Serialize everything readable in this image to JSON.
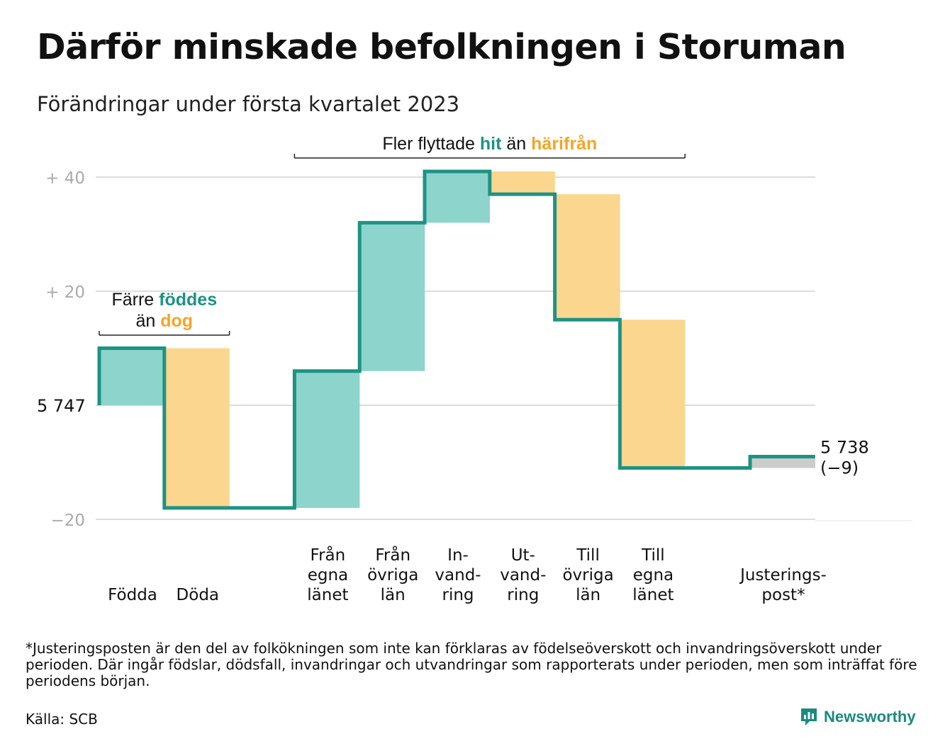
{
  "title": "Därför minskade befolkningen i Storuman",
  "subtitle": "Förändringar under första kvartalet 2023",
  "footnote": "*Justeringsposten är den del av folkökningen som inte kan förklaras av födelseöverskott och invandringsöverskott under perioden. Där ingår födslar, dödsfall, invandringar och utvandringar som rapporterats under perioden, men som inträffat före periodens början.",
  "source": "Källa: SCB",
  "brand": {
    "name": "Newsworthy",
    "icon": "newsworthy-logo-icon"
  },
  "colors": {
    "increase": "#8dd4cc",
    "decrease": "#fad68e",
    "adjustment": "#cccccc",
    "line": "#1e9384",
    "hit_text": "#1e9384",
    "harifran_text": "#f4a52a",
    "grid": "#dddddd",
    "tick_text": "#aaaaaa"
  },
  "chart_data": {
    "type": "waterfall",
    "start": {
      "value": 0,
      "label": "5 747"
    },
    "end": {
      "value": -9,
      "label_lines": [
        "5 738",
        "(−9)"
      ]
    },
    "y_ticks": [
      {
        "value": 40,
        "label": "+ 40"
      },
      {
        "value": 20,
        "label": "+ 20"
      },
      {
        "value": 0,
        "label": ""
      },
      {
        "value": -20,
        "label": "−20"
      }
    ],
    "ylim": [
      -20,
      41
    ],
    "grid": true,
    "steps": [
      {
        "lines": [
          "Födda"
        ],
        "delta": 10,
        "kind": "increase"
      },
      {
        "lines": [
          "Döda"
        ],
        "delta": -28,
        "kind": "decrease"
      },
      {
        "lines": [],
        "delta": 0,
        "kind": "none"
      },
      {
        "lines": [
          "Från",
          "egna",
          "länet"
        ],
        "delta": 24,
        "kind": "increase"
      },
      {
        "lines": [
          "Från",
          "övriga",
          "län"
        ],
        "delta": 26,
        "kind": "increase"
      },
      {
        "lines": [
          "In-",
          "vand-",
          "ring"
        ],
        "delta": 9,
        "kind": "increase"
      },
      {
        "lines": [
          "Ut-",
          "vand-",
          "ring"
        ],
        "delta": -4,
        "kind": "decrease"
      },
      {
        "lines": [
          "Till",
          "övriga",
          "län"
        ],
        "delta": -22,
        "kind": "decrease"
      },
      {
        "lines": [
          "Till",
          "egna",
          "länet"
        ],
        "delta": -26,
        "kind": "decrease"
      },
      {
        "lines": [],
        "delta": 0,
        "kind": "none"
      },
      {
        "lines": [
          "Justerings-",
          "post*"
        ],
        "delta": 2,
        "kind": "adjustment"
      }
    ],
    "annotations": [
      {
        "from_step": 0,
        "to_step": 1,
        "lines": [
          [
            {
              "text": "Färre ",
              "tone": "plain"
            },
            {
              "text": "föddes",
              "tone": "hit"
            }
          ],
          [
            {
              "text": "än ",
              "tone": "plain"
            },
            {
              "text": "dog",
              "tone": "harifran"
            }
          ]
        ]
      },
      {
        "from_step": 3,
        "to_step": 8,
        "lines": [
          [
            {
              "text": "Fler flyttade ",
              "tone": "plain"
            },
            {
              "text": "hit",
              "tone": "hit"
            },
            {
              "text": " än ",
              "tone": "plain"
            },
            {
              "text": "härifrån",
              "tone": "harifran"
            }
          ]
        ]
      }
    ]
  }
}
